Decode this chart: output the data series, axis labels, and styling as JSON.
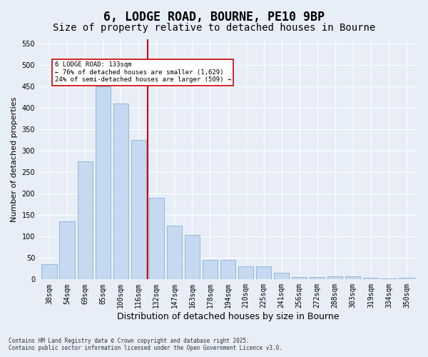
{
  "title1": "6, LODGE ROAD, BOURNE, PE10 9BP",
  "title2": "Size of property relative to detached houses in Bourne",
  "xlabel": "Distribution of detached houses by size in Bourne",
  "ylabel": "Number of detached properties",
  "categories": [
    "38sqm",
    "54sqm",
    "69sqm",
    "85sqm",
    "100sqm",
    "116sqm",
    "132sqm",
    "147sqm",
    "163sqm",
    "178sqm",
    "194sqm",
    "210sqm",
    "225sqm",
    "241sqm",
    "256sqm",
    "272sqm",
    "288sqm",
    "303sqm",
    "319sqm",
    "334sqm",
    "350sqm"
  ],
  "values": [
    35,
    135,
    275,
    450,
    410,
    325,
    190,
    125,
    103,
    46,
    45,
    30,
    30,
    15,
    5,
    5,
    8,
    8,
    4,
    3,
    4
  ],
  "bar_color": "#c5d9f0",
  "bar_edge_color": "#7aa6d4",
  "ref_line_idx": 6,
  "ref_line_color": "#cc0000",
  "annotation_text": "6 LODGE ROAD: 133sqm\n← 76% of detached houses are smaller (1,629)\n24% of semi-detached houses are larger (509) →",
  "annotation_box_color": "#ffffff",
  "annotation_box_edge": "#cc0000",
  "background_color": "#e8eef7",
  "ylim": [
    0,
    560
  ],
  "yticks": [
    0,
    50,
    100,
    150,
    200,
    250,
    300,
    350,
    400,
    450,
    500,
    550
  ],
  "footnote1": "Contains HM Land Registry data © Crown copyright and database right 2025.",
  "footnote2": "Contains public sector information licensed under the Open Government Licence v3.0.",
  "title_fontsize": 12,
  "subtitle_fontsize": 10,
  "tick_fontsize": 7,
  "xlabel_fontsize": 9,
  "ylabel_fontsize": 8
}
